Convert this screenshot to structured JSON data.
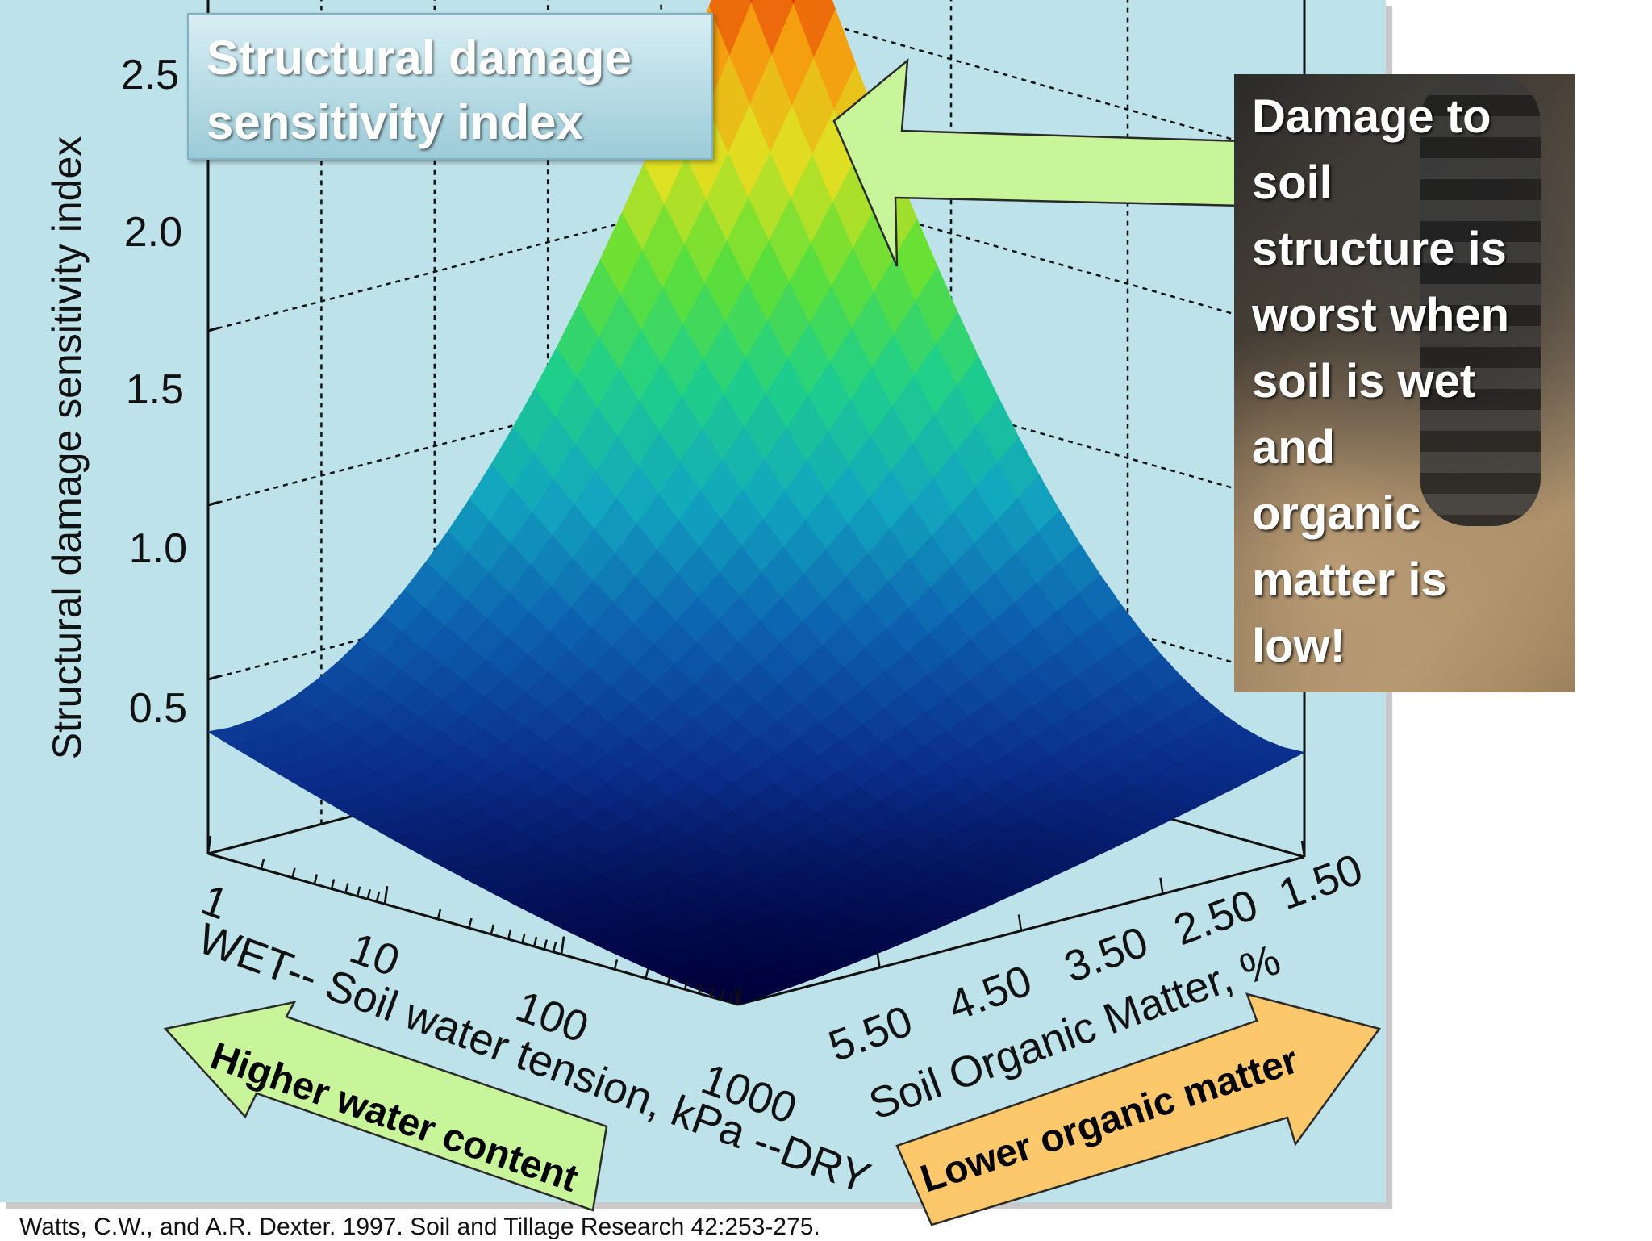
{
  "chart_data": {
    "type": "surface",
    "title_box": [
      "Structural damage",
      "sensitivity index"
    ],
    "zlabel": "Structural  damage  sensitivity  index",
    "z_ticks": [
      "0.5",
      "1.0",
      "1.5",
      "2.0",
      "2.5"
    ],
    "zlim": [
      0,
      2.5
    ],
    "x_axis": {
      "label": "WET-- Soil water tension, kPa --DRY",
      "scale": "log",
      "ticks": [
        "1",
        "10",
        "100",
        "1000"
      ],
      "range": [
        1,
        1000
      ]
    },
    "y_axis": {
      "label": "Soil Organic Matter, %",
      "ticks": [
        "5.50",
        "4.50",
        "3.50",
        "2.50",
        "1.50"
      ],
      "range": [
        5.5,
        1.5
      ]
    },
    "corner_values": [
      {
        "water_tension_kPa": 1,
        "organic_matter_pct": 5.5,
        "index": 0.35
      },
      {
        "water_tension_kPa": 1000,
        "organic_matter_pct": 5.5,
        "index": 0.0
      },
      {
        "water_tension_kPa": 1000,
        "organic_matter_pct": 1.5,
        "index": 0.3
      },
      {
        "water_tension_kPa": 1,
        "organic_matter_pct": 1.5,
        "index": 2.5
      }
    ],
    "colormap": [
      "#00003a",
      "#0a2e8c",
      "#0d62b0",
      "#12a6bf",
      "#1fcf8a",
      "#5fe036",
      "#dfe022",
      "#f59a0f",
      "#e02a05",
      "#2a0000"
    ],
    "annotations": {
      "note": [
        "Damage to",
        "soil",
        "structure is",
        "worst when",
        "soil is wet",
        "and",
        "organic",
        "matter is",
        "low!"
      ],
      "arrow_left": "Higher water content",
      "arrow_right": "Lower organic matter"
    },
    "citation": "Watts, C.W., and A.R. Dexter. 1997. Soil and Tillage Research 42:253-275."
  }
}
